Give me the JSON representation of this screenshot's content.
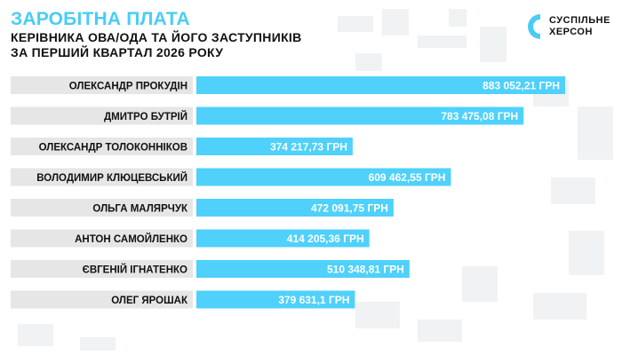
{
  "header": {
    "title": "ЗАРОБІТНА ПЛАТА",
    "subtitle_line1": "КЕРІВНИКА ОВА/ОДА ТА ЙОГО ЗАСТУПНИКІВ",
    "subtitle_line2": "ЗА ПЕРШИЙ КВАРТАЛ 2026 РОКУ"
  },
  "logo": {
    "line1": "СУСПІЛЬНЕ",
    "line2": "ХЕРСОН",
    "icon": "suspilne-logo-icon"
  },
  "colors": {
    "title": "#49cdf6",
    "bar": "#4fd1fb",
    "label_bg": "#e6e6e6",
    "text": "#111111",
    "value_text": "#ffffff"
  },
  "chart_data": {
    "type": "bar",
    "orientation": "horizontal",
    "categories": [
      "ОЛЕКСАНДР ПРОКУДІН",
      "ДМИТРО БУТРІЙ",
      "ОЛЕКСАНДР ТОЛОКОННІКОВ",
      "ВОЛОДИМИР КЛЮЦЕВСЬКИЙ",
      "ОЛЬГА МАЛЯРЧУК",
      "АНТОН САМОЙЛЕНКО",
      "ЄВГЕНІЙ ІГНАТЕНКО",
      "ОЛЕГ ЯРОШАК"
    ],
    "values": [
      883052.21,
      783475.08,
      374217.73,
      609462.55,
      472091.75,
      414205.36,
      510348.81,
      379631.1
    ],
    "value_labels": [
      "883 052,21 ГРН",
      "783 475,08 ГРН",
      "374 217,73 ГРН",
      "609 462,55 ГРН",
      "472 091,75 ГРН",
      "414 205,36 ГРН",
      "510 348,81 ГРН",
      "379 631,1 ГРН"
    ],
    "title": "ЗАРОБІТНА ПЛАТА",
    "xlabel": "",
    "ylabel": "",
    "xlim": [
      0,
      1000000
    ],
    "grid": false,
    "legend": "none"
  }
}
